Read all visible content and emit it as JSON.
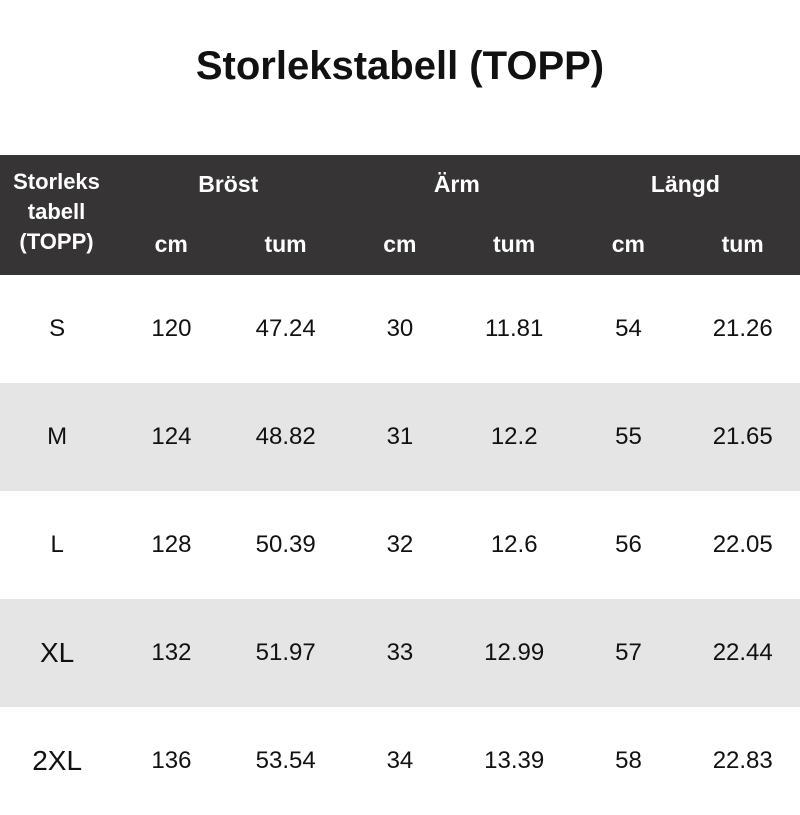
{
  "title": "Storlekstabell (TOPP)",
  "header": {
    "first": [
      "Storleks",
      "tabell",
      "(TOPP)"
    ],
    "groups": [
      "Bröst",
      "Ärm",
      "Längd"
    ],
    "units": [
      "cm",
      "tum",
      "cm",
      "tum",
      "cm",
      "tum"
    ]
  },
  "rows": [
    [
      "S",
      "120",
      "47.24",
      "30",
      "11.81",
      "54",
      "21.26"
    ],
    [
      "M",
      "124",
      "48.82",
      "31",
      "12.2",
      "55",
      "21.65"
    ],
    [
      "L",
      "128",
      "50.39",
      "32",
      "12.6",
      "56",
      "22.05"
    ],
    [
      "XL",
      "132",
      "51.97",
      "33",
      "12.99",
      "57",
      "22.44"
    ],
    [
      "2XL",
      "136",
      "53.54",
      "34",
      "13.39",
      "58",
      "22.83"
    ]
  ],
  "colors": {
    "header_bg": "#363435",
    "alt_row": "#e6e5e6"
  }
}
